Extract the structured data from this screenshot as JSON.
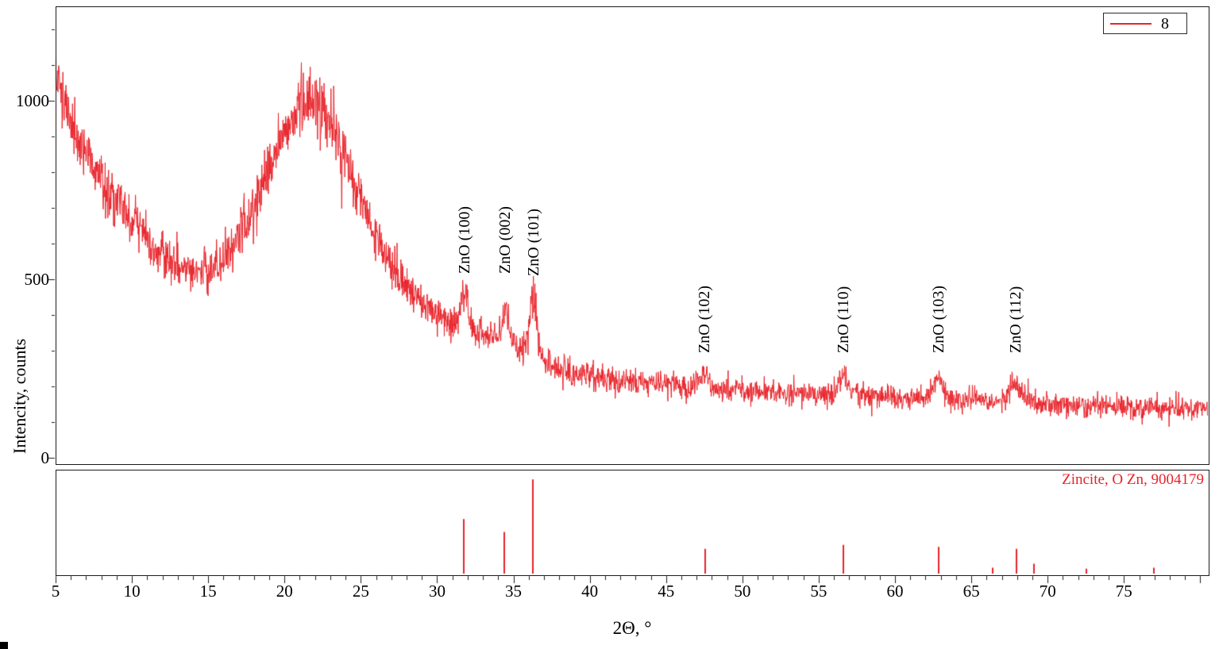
{
  "figure": {
    "legend": {
      "series_label": "8",
      "line_color": "#e8232a"
    },
    "reference_label": "Zincite, O Zn, 9004179"
  },
  "chart_data": {
    "type": "line",
    "title": "",
    "xlabel": "2Θ, °",
    "ylabel": "Intencity, counts",
    "xlim": [
      5,
      80.5
    ],
    "ylim": [
      0,
      1264
    ],
    "x_ticks": [
      5,
      10,
      15,
      20,
      25,
      30,
      35,
      40,
      45,
      50,
      55,
      60,
      65,
      70,
      75
    ],
    "y_ticks": [
      0,
      500,
      1000
    ],
    "grid": false,
    "legend_position": "top-right",
    "series_color": "#e8232a",
    "noise_scale": 1.3,
    "background_points": [
      [
        5,
        1090
      ],
      [
        5.5,
        1010
      ],
      [
        6,
        945
      ],
      [
        6.5,
        893
      ],
      [
        7,
        850
      ],
      [
        8,
        780
      ],
      [
        9,
        720
      ],
      [
        10,
        665
      ],
      [
        11,
        610
      ],
      [
        12,
        565
      ],
      [
        13,
        535
      ],
      [
        14,
        522
      ],
      [
        15,
        525
      ],
      [
        16,
        555
      ],
      [
        17,
        615
      ],
      [
        18,
        700
      ],
      [
        19,
        810
      ],
      [
        20,
        915
      ],
      [
        20.5,
        955
      ],
      [
        21,
        985
      ],
      [
        21.5,
        1000
      ],
      [
        22,
        995
      ],
      [
        22.5,
        975
      ],
      [
        23,
        935
      ],
      [
        23.5,
        885
      ],
      [
        24,
        830
      ],
      [
        25,
        715
      ],
      [
        26,
        615
      ],
      [
        27,
        540
      ],
      [
        28,
        482
      ],
      [
        29,
        432
      ],
      [
        30,
        398
      ],
      [
        31,
        372
      ],
      [
        32,
        352
      ],
      [
        33,
        342
      ],
      [
        34,
        330
      ],
      [
        35,
        312
      ],
      [
        36,
        295
      ],
      [
        36.8,
        278
      ],
      [
        37.5,
        258
      ],
      [
        38.5,
        240
      ],
      [
        40,
        228
      ],
      [
        42,
        215
      ],
      [
        44,
        207
      ],
      [
        46,
        200
      ],
      [
        48,
        193
      ],
      [
        50,
        188
      ],
      [
        52,
        184
      ],
      [
        54,
        181
      ],
      [
        56,
        178
      ],
      [
        58,
        174
      ],
      [
        60,
        171
      ],
      [
        62,
        168
      ],
      [
        64,
        166
      ],
      [
        66,
        162
      ],
      [
        67,
        160
      ],
      [
        68,
        158
      ],
      [
        69,
        155
      ],
      [
        70,
        151
      ],
      [
        72,
        147
      ],
      [
        74,
        144
      ],
      [
        76,
        141
      ],
      [
        78,
        139
      ],
      [
        80.5,
        137
      ]
    ],
    "peaks": [
      {
        "label": "ZnO (100)",
        "x": 31.8,
        "height": 110,
        "sigma": 0.25,
        "label_y": 515
      },
      {
        "label": "ZnO (002)",
        "x": 34.45,
        "height": 85,
        "sigma": 0.22,
        "label_y": 515
      },
      {
        "label": "ZnO (101)",
        "x": 36.3,
        "height": 175,
        "sigma": 0.22,
        "label_y": 508
      },
      {
        "label": "ZnO (102)",
        "x": 47.5,
        "height": 35,
        "sigma": 0.4,
        "label_y": 293
      },
      {
        "label": "ZnO (110)",
        "x": 56.6,
        "height": 45,
        "sigma": 0.3,
        "label_y": 293
      },
      {
        "label": "ZnO (103)",
        "x": 62.85,
        "height": 50,
        "sigma": 0.35,
        "label_y": 293
      },
      {
        "label": "ZnO (112)",
        "x": 67.9,
        "height": 48,
        "sigma": 0.35,
        "label_y": 293
      }
    ],
    "reference_sticks": [
      {
        "x": 31.77,
        "h": 0.55
      },
      {
        "x": 34.42,
        "h": 0.42
      },
      {
        "x": 36.25,
        "h": 0.95
      },
      {
        "x": 47.54,
        "h": 0.25
      },
      {
        "x": 56.6,
        "h": 0.29
      },
      {
        "x": 62.86,
        "h": 0.27
      },
      {
        "x": 66.38,
        "h": 0.06
      },
      {
        "x": 67.96,
        "h": 0.25
      },
      {
        "x": 69.1,
        "h": 0.1
      },
      {
        "x": 72.56,
        "h": 0.05
      },
      {
        "x": 76.95,
        "h": 0.06
      }
    ]
  }
}
